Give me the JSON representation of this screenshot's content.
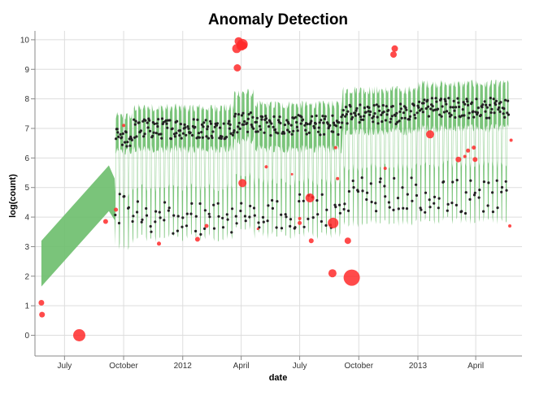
{
  "chart_data": {
    "type": "scatter",
    "title": "Anomaly Detection",
    "xlabel": "date",
    "ylabel": "log(count)",
    "x_range": [
      "2011-05-16",
      "2013-06-12"
    ],
    "ylim": [
      -0.7,
      10.3
    ],
    "grid": true,
    "legend": "none",
    "x_ticks": [
      {
        "date": "2011-07-01",
        "label": "July"
      },
      {
        "date": "2011-10-01",
        "label": "October"
      },
      {
        "date": "2012-01-01",
        "label": "2012"
      },
      {
        "date": "2012-04-01",
        "label": "April"
      },
      {
        "date": "2012-07-01",
        "label": "July"
      },
      {
        "date": "2012-10-01",
        "label": "October"
      },
      {
        "date": "2013-01-01",
        "label": "2013"
      },
      {
        "date": "2013-04-01",
        "label": "April"
      }
    ],
    "y_ticks": [
      0,
      1,
      2,
      3,
      4,
      5,
      6,
      7,
      8,
      9,
      10
    ],
    "colors": {
      "band": "#6cbe6c",
      "normal": "#222222",
      "anomaly": "#ff2a2a"
    },
    "band": {
      "name": "prediction interval",
      "ramp": [
        {
          "date": "2011-05-26",
          "lower": 1.65,
          "upper": 3.2
        },
        {
          "date": "2011-09-08",
          "lower": 4.2,
          "upper": 5.75
        },
        {
          "date": "2011-09-17",
          "lower": 3.9,
          "upper": 5.3
        }
      ],
      "weekly": {
        "start": "2011-09-18",
        "end": "2013-05-22",
        "segments": [
          {
            "until": "2011-10-15",
            "weekday_lower": 6.2,
            "weekday_upper": 7.4,
            "weekend_lower": 3.0,
            "weekend_upper": 4.8
          },
          {
            "until": "2012-03-20",
            "weekday_lower": 6.3,
            "weekday_upper": 7.7,
            "weekend_lower": 3.3,
            "weekend_upper": 5.0
          },
          {
            "until": "2012-04-20",
            "weekday_lower": 6.6,
            "weekday_upper": 8.2,
            "weekend_lower": 3.6,
            "weekend_upper": 5.4
          },
          {
            "until": "2012-09-05",
            "weekday_lower": 6.3,
            "weekday_upper": 7.8,
            "weekend_lower": 3.4,
            "weekend_upper": 5.2
          },
          {
            "until": "2013-01-01",
            "weekday_lower": 6.9,
            "weekday_upper": 8.3,
            "weekend_lower": 3.8,
            "weekend_upper": 5.7
          },
          {
            "until": "2013-05-22",
            "weekday_lower": 7.0,
            "weekday_upper": 8.5,
            "weekend_lower": 3.9,
            "weekend_upper": 5.8
          }
        ]
      }
    },
    "normal_points": {
      "name": "normal",
      "start": "2011-09-18",
      "end": "2013-05-22",
      "description": "daily observations inside the interval",
      "segments": [
        {
          "until": "2011-10-15",
          "weekday_mean": 6.7,
          "weekend_mean": 4.2
        },
        {
          "until": "2012-03-20",
          "weekday_mean": 7.0,
          "weekend_mean": 4.0
        },
        {
          "until": "2012-04-20",
          "weekday_mean": 7.2,
          "weekend_mean": 4.3
        },
        {
          "until": "2012-09-05",
          "weekday_mean": 7.1,
          "weekend_mean": 4.2
        },
        {
          "until": "2013-01-01",
          "weekday_mean": 7.5,
          "weekend_mean": 4.8
        },
        {
          "until": "2013-05-22",
          "weekday_mean": 7.7,
          "weekend_mean": 4.7
        }
      ]
    },
    "anomalies": [
      {
        "date": "2011-05-26",
        "value": 1.1,
        "size": 7
      },
      {
        "date": "2011-05-27",
        "value": 0.7,
        "size": 7
      },
      {
        "date": "2011-07-24",
        "value": 0.0,
        "size": 15
      },
      {
        "date": "2011-09-03",
        "value": 3.85,
        "size": 6
      },
      {
        "date": "2011-09-19",
        "value": 4.25,
        "size": 5
      },
      {
        "date": "2011-10-01",
        "value": 7.1,
        "size": 4
      },
      {
        "date": "2011-11-25",
        "value": 3.1,
        "size": 5
      },
      {
        "date": "2012-01-24",
        "value": 3.25,
        "size": 6
      },
      {
        "date": "2012-02-07",
        "value": 3.7,
        "size": 5
      },
      {
        "date": "2012-03-25",
        "value": 9.7,
        "size": 11
      },
      {
        "date": "2012-03-26",
        "value": 9.05,
        "size": 9
      },
      {
        "date": "2012-03-28",
        "value": 9.95,
        "size": 10
      },
      {
        "date": "2012-04-01",
        "value": 9.8,
        "size": 12
      },
      {
        "date": "2012-04-03",
        "value": 9.85,
        "size": 13
      },
      {
        "date": "2012-04-03",
        "value": 5.15,
        "size": 10
      },
      {
        "date": "2012-04-05",
        "value": 9.8,
        "size": 9
      },
      {
        "date": "2012-04-27",
        "value": 3.6,
        "size": 3
      },
      {
        "date": "2012-05-10",
        "value": 5.7,
        "size": 4
      },
      {
        "date": "2012-06-19",
        "value": 5.45,
        "size": 3
      },
      {
        "date": "2012-07-01",
        "value": 3.8,
        "size": 5
      },
      {
        "date": "2012-07-01",
        "value": 3.95,
        "size": 4
      },
      {
        "date": "2012-07-17",
        "value": 4.65,
        "size": 11
      },
      {
        "date": "2012-07-19",
        "value": 3.2,
        "size": 6
      },
      {
        "date": "2012-08-22",
        "value": 3.8,
        "size": 13
      },
      {
        "date": "2012-08-21",
        "value": 2.1,
        "size": 10
      },
      {
        "date": "2012-08-26",
        "value": 6.35,
        "size": 4
      },
      {
        "date": "2012-08-29",
        "value": 5.3,
        "size": 4
      },
      {
        "date": "2012-09-14",
        "value": 3.2,
        "size": 8
      },
      {
        "date": "2012-09-20",
        "value": 1.95,
        "size": 20
      },
      {
        "date": "2012-11-11",
        "value": 5.65,
        "size": 4
      },
      {
        "date": "2012-11-24",
        "value": 9.5,
        "size": 8
      },
      {
        "date": "2012-11-26",
        "value": 9.7,
        "size": 8
      },
      {
        "date": "2013-01-20",
        "value": 6.8,
        "size": 10
      },
      {
        "date": "2013-03-05",
        "value": 5.95,
        "size": 7
      },
      {
        "date": "2013-03-15",
        "value": 6.05,
        "size": 4
      },
      {
        "date": "2013-03-20",
        "value": 6.25,
        "size": 5
      },
      {
        "date": "2013-03-29",
        "value": 6.35,
        "size": 5
      },
      {
        "date": "2013-03-31",
        "value": 5.95,
        "size": 6
      },
      {
        "date": "2013-05-24",
        "value": 3.7,
        "size": 4
      },
      {
        "date": "2013-05-26",
        "value": 6.6,
        "size": 4
      }
    ]
  }
}
